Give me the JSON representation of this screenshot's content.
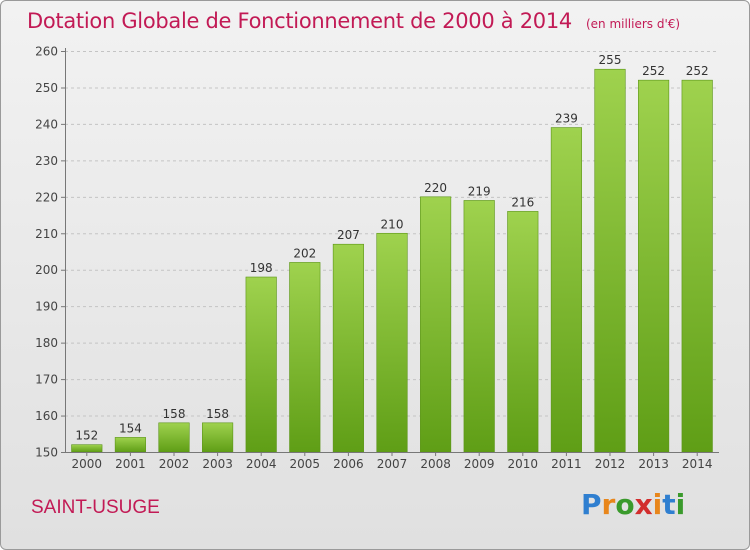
{
  "header": {
    "title": "Dotation Globale de Fonctionnement de 2000 à 2014",
    "unit": "(en milliers d'€)"
  },
  "footer": {
    "commune": "SAINT-USUGE",
    "brand_letters": [
      "P",
      "r",
      "o",
      "x",
      "i",
      "t",
      "i"
    ],
    "brand_colors": [
      "#2f7fd0",
      "#e8861b",
      "#3a9a2c",
      "#d22d2d",
      "#e8861b",
      "#2f7fd0",
      "#3a9a2c"
    ]
  },
  "chart_data": {
    "type": "bar",
    "title": "Dotation Globale de Fonctionnement de 2000 à 2014",
    "subtitle": "(en milliers d'€)",
    "xlabel": "",
    "ylabel": "",
    "categories": [
      "2000",
      "2001",
      "2002",
      "2003",
      "2004",
      "2005",
      "2006",
      "2007",
      "2008",
      "2009",
      "2010",
      "2011",
      "2012",
      "2013",
      "2014"
    ],
    "values": [
      152,
      154,
      158,
      158,
      198,
      202,
      207,
      210,
      220,
      219,
      216,
      239,
      255,
      252,
      252
    ],
    "ylim": [
      150,
      260
    ],
    "yticks": [
      150,
      160,
      170,
      180,
      190,
      200,
      210,
      220,
      230,
      240,
      250,
      260
    ],
    "grid": true,
    "bar_color": "#8dc63f"
  }
}
